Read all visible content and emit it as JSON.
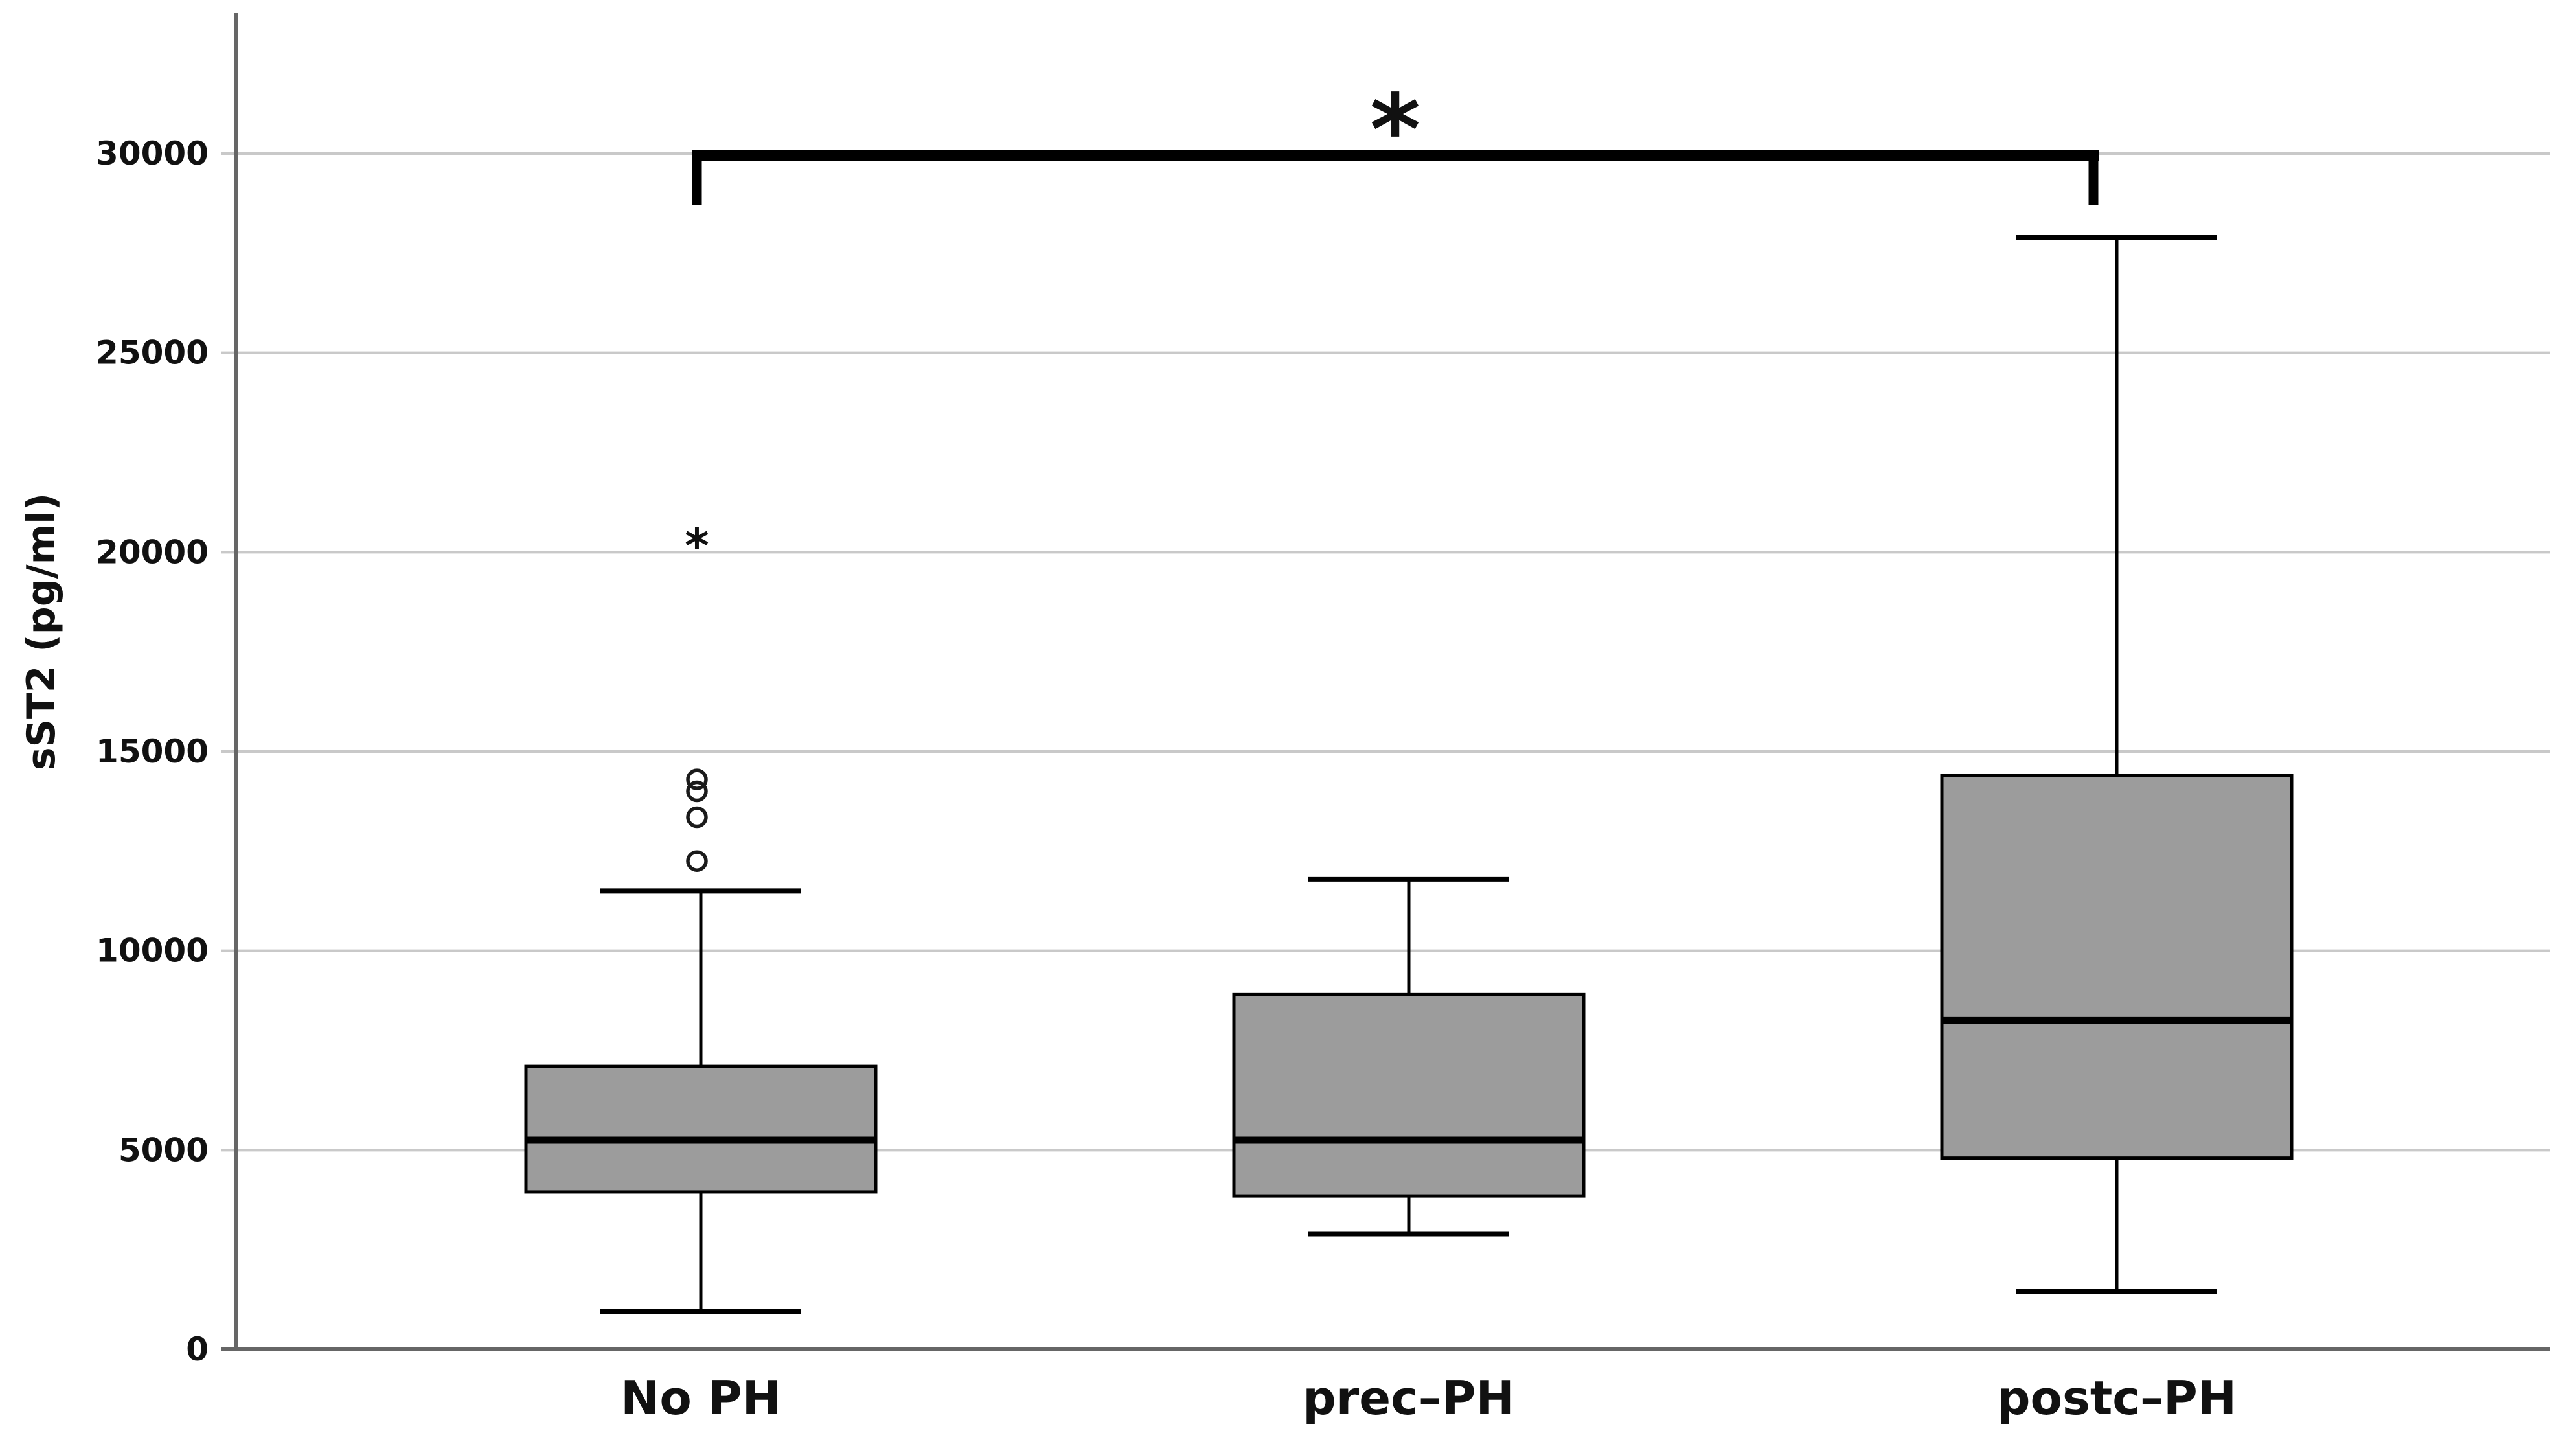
{
  "chart_data": {
    "type": "boxplot",
    "title": "",
    "xlabel": "",
    "ylabel": "sST2 (pg/ml)",
    "categories": [
      "No PH",
      "prec–PH",
      "postc–PH"
    ],
    "ytick_labels": [
      "0",
      "5000",
      "10000",
      "15000",
      "20000",
      "25000",
      "30000"
    ],
    "yticks": [
      0,
      5000,
      10000,
      15000,
      20000,
      25000,
      30000
    ],
    "ylim": [
      0,
      33500
    ],
    "grid": "horizontal",
    "legend": "none",
    "series": [
      {
        "category": "No PH",
        "whisker_low": 950,
        "q1": 3950,
        "median": 5250,
        "q3": 7100,
        "whisker_high": 11500,
        "outliers_circle": [
          12250,
          13350,
          14000,
          14300
        ],
        "outliers_extreme": [
          20500
        ]
      },
      {
        "category": "prec–PH",
        "whisker_low": 2900,
        "q1": 3850,
        "median": 5250,
        "q3": 8900,
        "whisker_high": 11800,
        "outliers_circle": [],
        "outliers_extreme": []
      },
      {
        "category": "postc–PH",
        "whisker_low": 1450,
        "q1": 4800,
        "median": 8250,
        "q3": 14400,
        "whisker_high": 27900,
        "outliers_circle": [],
        "outliers_extreme": []
      }
    ],
    "outlier_marker_circle": "○",
    "outlier_marker_extreme": "*",
    "significance_bracket": {
      "from_category": "No PH",
      "to_category": "postc–PH",
      "label": "*",
      "bar_value": 30000
    },
    "colors": {
      "box_fill": "#9c9c9c",
      "box_border": "#000000",
      "median": "#000000",
      "whisker": "#000000",
      "outlier": "#1a1a1a",
      "gridline": "#c9c9c9",
      "axis": "#666666",
      "text": "#111111",
      "background": "#ffffff"
    }
  }
}
